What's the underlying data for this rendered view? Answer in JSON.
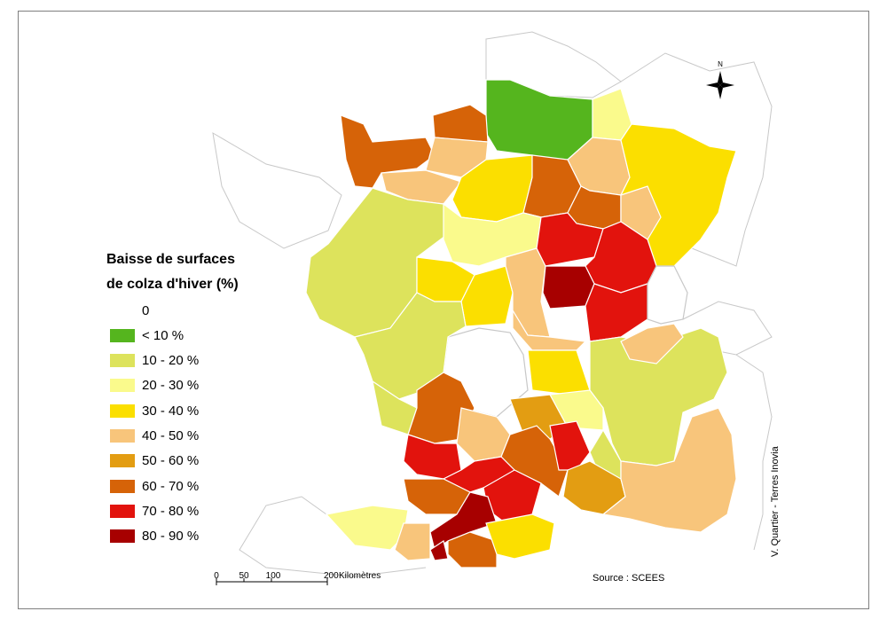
{
  "legend": {
    "title_line1": "Baisse de surfaces",
    "title_line2": "de colza d'hiver (%)",
    "classes": [
      {
        "label": "0",
        "color": "#ffffff"
      },
      {
        "label": "< 10 %",
        "color": "#55b51e"
      },
      {
        "label": "10 - 20 %",
        "color": "#dde35c"
      },
      {
        "label": "20 - 30 %",
        "color": "#fafa8c"
      },
      {
        "label": "30 - 40 %",
        "color": "#fbdf00"
      },
      {
        "label": "40 - 50 %",
        "color": "#f8c57b"
      },
      {
        "label": "50 - 60 %",
        "color": "#e39d12"
      },
      {
        "label": "60 - 70 %",
        "color": "#d66308"
      },
      {
        "label": "70 - 80 %",
        "color": "#e2130d"
      },
      {
        "label": "80 - 90 %",
        "color": "#a70000"
      }
    ]
  },
  "scale_bar": {
    "ticks": [
      "0",
      "50",
      "100",
      "200"
    ],
    "unit": "Kilomètres"
  },
  "north_arrow": {
    "label": "N",
    "icon": "compass-rose-icon"
  },
  "source": "Source : SCEES",
  "credit": "V. Quartier - Terres Inovia"
}
